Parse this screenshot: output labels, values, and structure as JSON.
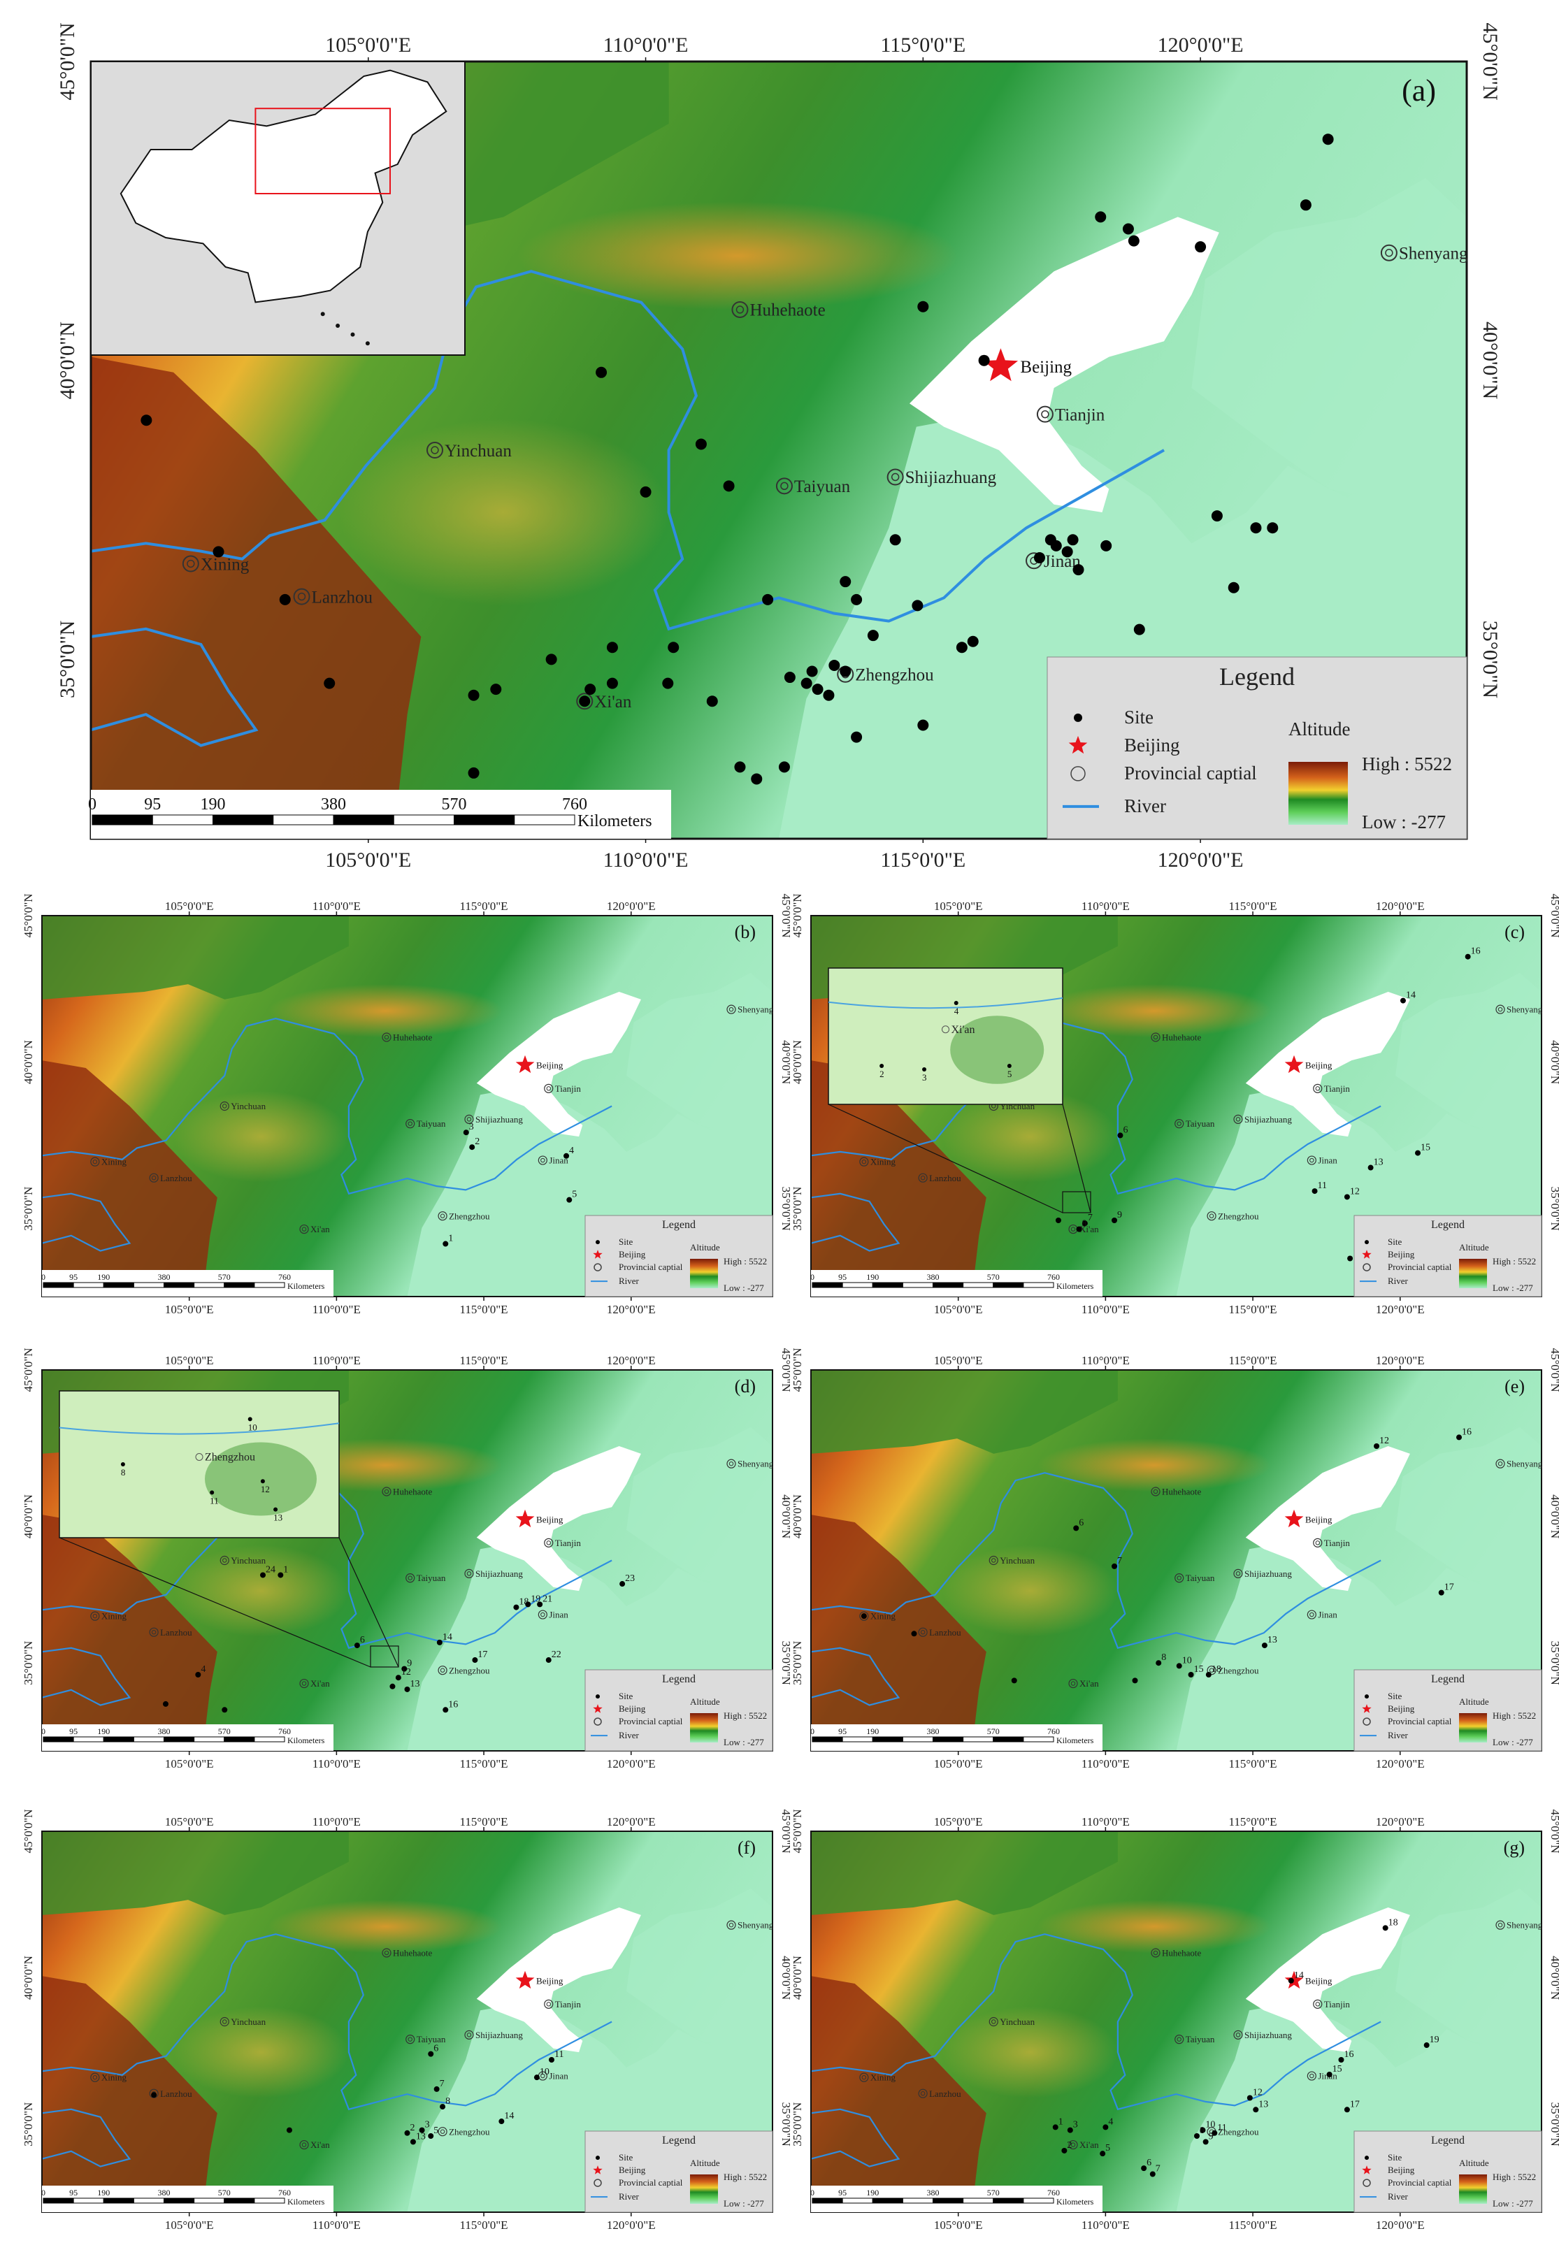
{
  "panels": [
    {
      "id": "a",
      "label": "(a)",
      "lon_ticks": [
        "105°0'0\"E",
        "110°0'0\"E",
        "115°0'0\"E",
        "120°0'0\"E"
      ],
      "lat_ticks": [
        "45°0'0\"N",
        "40°0'0\"N",
        "35°0'0\"N"
      ],
      "scale_numbers": [
        "0",
        "95",
        "190",
        "380",
        "570",
        "760"
      ],
      "scale_unit": "Kilometers"
    },
    {
      "id": "b",
      "label": "(b)",
      "lon_ticks": [
        "105°0'0\"E",
        "110°0'0\"E",
        "115°0'0\"E",
        "120°0'0\"E"
      ],
      "lat_ticks": [
        "45°0'0\"N",
        "40°0'0\"N",
        "35°0'0\"N"
      ],
      "scale_numbers": [
        "0",
        "95",
        "190",
        "380",
        "570",
        "760"
      ],
      "scale_unit": "Kilometers"
    },
    {
      "id": "c",
      "label": "(c)",
      "lon_ticks": [
        "105°0'0\"E",
        "110°0'0\"E",
        "115°0'0\"E",
        "120°0'0\"E"
      ],
      "lat_ticks": [
        "45°0'0\"N",
        "40°0'0\"N",
        "35°0'0\"N"
      ],
      "scale_numbers": [
        "0",
        "95",
        "190",
        "380",
        "570",
        "760"
      ],
      "scale_unit": "Kilometers"
    },
    {
      "id": "d",
      "label": "(d)",
      "lon_ticks": [
        "105°0'0\"E",
        "110°0'0\"E",
        "115°0'0\"E",
        "120°0'0\"E"
      ],
      "lat_ticks": [
        "45°0'0\"N",
        "40°0'0\"N",
        "35°0'0\"N"
      ],
      "scale_numbers": [
        "0",
        "95",
        "190",
        "380",
        "570",
        "760"
      ],
      "scale_unit": "Kilometers"
    },
    {
      "id": "e",
      "label": "(e)",
      "lon_ticks": [
        "105°0'0\"E",
        "110°0'0\"E",
        "115°0'0\"E",
        "120°0'0\"E"
      ],
      "lat_ticks": [
        "45°0'0\"N",
        "40°0'0\"N",
        "35°0'0\"N"
      ],
      "scale_numbers": [
        "0",
        "95",
        "190",
        "380",
        "570",
        "760"
      ],
      "scale_unit": "Kilometers"
    },
    {
      "id": "f",
      "label": "(f)",
      "lon_ticks": [
        "105°0'0\"E",
        "110°0'0\"E",
        "115°0'0\"E",
        "120°0'0\"E"
      ],
      "lat_ticks": [
        "45°0'0\"N",
        "40°0'0\"N",
        "35°0'0\"N"
      ],
      "scale_numbers": [
        "0",
        "95",
        "190",
        "380",
        "570",
        "760"
      ],
      "scale_unit": "Kilometers"
    },
    {
      "id": "g",
      "label": "(g)",
      "lon_ticks": [
        "105°0'0\"E",
        "110°0'0\"E",
        "115°0'0\"E",
        "120°0'0\"E"
      ],
      "lat_ticks": [
        "45°0'0\"N",
        "40°0'0\"N",
        "35°0'0\"N"
      ],
      "scale_numbers": [
        "0",
        "95",
        "190",
        "380",
        "570",
        "760"
      ],
      "scale_unit": "Kilometers"
    }
  ],
  "cities": [
    {
      "name": "Huhehaote",
      "lon": 111.7,
      "lat": 40.85
    },
    {
      "name": "Beijing",
      "lon": 116.4,
      "lat": 39.9,
      "capital": true
    },
    {
      "name": "Tianjin",
      "lon": 117.2,
      "lat": 39.1
    },
    {
      "name": "Shenyang",
      "lon": 123.4,
      "lat": 41.8
    },
    {
      "name": "Yinchuan",
      "lon": 106.2,
      "lat": 38.5
    },
    {
      "name": "Taiyuan",
      "lon": 112.5,
      "lat": 37.9
    },
    {
      "name": "Shijiazhuang",
      "lon": 114.5,
      "lat": 38.05
    },
    {
      "name": "Jinan",
      "lon": 117.0,
      "lat": 36.65
    },
    {
      "name": "Xining",
      "lon": 101.8,
      "lat": 36.6
    },
    {
      "name": "Lanzhou",
      "lon": 103.8,
      "lat": 36.05
    },
    {
      "name": "Zhengzhou",
      "lon": 113.6,
      "lat": 34.75
    },
    {
      "name": "Xi'an",
      "lon": 108.9,
      "lat": 34.3
    }
  ],
  "legend": {
    "title": "Legend",
    "site": "Site",
    "beijing": "Beijing",
    "capital": "Provincial captial",
    "river": "River",
    "altitude": "Altitude",
    "high": "High : 5522",
    "low": "Low : -277"
  },
  "sites_a": [
    [
      101.0,
      39.0
    ],
    [
      102.3,
      36.8
    ],
    [
      103.5,
      36.0
    ],
    [
      104.3,
      34.6
    ],
    [
      106.9,
      34.4
    ],
    [
      107.3,
      34.5
    ],
    [
      106.9,
      33.1
    ],
    [
      108.3,
      35.0
    ],
    [
      108.9,
      34.3
    ],
    [
      109.0,
      34.5
    ],
    [
      109.4,
      35.2
    ],
    [
      109.4,
      34.6
    ],
    [
      110.5,
      35.2
    ],
    [
      110.4,
      34.6
    ],
    [
      111.2,
      34.3
    ],
    [
      112.2,
      36.0
    ],
    [
      111.5,
      37.9
    ],
    [
      110.0,
      37.8
    ],
    [
      111.0,
      38.6
    ],
    [
      109.2,
      39.8
    ],
    [
      112.6,
      34.7
    ],
    [
      112.9,
      34.6
    ],
    [
      113.1,
      34.5
    ],
    [
      113.3,
      34.4
    ],
    [
      113.6,
      34.8
    ],
    [
      113.4,
      34.9
    ],
    [
      113.0,
      34.8
    ],
    [
      113.8,
      33.7
    ],
    [
      112.5,
      33.2
    ],
    [
      112.0,
      33.0
    ],
    [
      111.7,
      33.2
    ],
    [
      114.1,
      35.4
    ],
    [
      113.6,
      36.3
    ],
    [
      113.8,
      36.0
    ],
    [
      114.5,
      37.0
    ],
    [
      114.9,
      35.9
    ],
    [
      115.0,
      33.9
    ],
    [
      115.7,
      35.2
    ],
    [
      115.9,
      35.3
    ],
    [
      117.6,
      36.8
    ],
    [
      117.7,
      37.0
    ],
    [
      117.4,
      36.9
    ],
    [
      117.1,
      36.7
    ],
    [
      117.8,
      36.5
    ],
    [
      118.3,
      36.9
    ],
    [
      118.9,
      35.5
    ],
    [
      117.3,
      37.0
    ],
    [
      120.3,
      37.4
    ],
    [
      121.0,
      37.2
    ],
    [
      121.3,
      37.2
    ],
    [
      120.6,
      36.2
    ],
    [
      118.2,
      42.4
    ],
    [
      118.7,
      42.2
    ],
    [
      118.8,
      42.0
    ],
    [
      120.0,
      41.9
    ],
    [
      121.9,
      42.6
    ],
    [
      122.3,
      43.7
    ],
    [
      115.0,
      40.9
    ],
    [
      116.1,
      40.0
    ]
  ],
  "sites_b": [
    {
      "n": "1",
      "lon": 113.7,
      "lat": 33.8
    },
    {
      "n": "2",
      "lon": 114.6,
      "lat": 37.1
    },
    {
      "n": "3",
      "lon": 114.4,
      "lat": 37.6
    },
    {
      "n": "4",
      "lon": 117.8,
      "lat": 36.8
    },
    {
      "n": "5",
      "lon": 117.9,
      "lat": 35.3
    }
  ],
  "sites_c": [
    {
      "n": "6",
      "lon": 110.5,
      "lat": 37.5
    },
    {
      "n": "10",
      "lon": 118.3,
      "lat": 33.3
    },
    {
      "n": "11",
      "lon": 117.1,
      "lat": 35.6
    },
    {
      "n": "12",
      "lon": 118.2,
      "lat": 35.4
    },
    {
      "n": "13",
      "lon": 119.0,
      "lat": 36.4
    },
    {
      "n": "14",
      "lon": 120.1,
      "lat": 42.1
    },
    {
      "n": "15",
      "lon": 120.6,
      "lat": 36.9
    },
    {
      "n": "16",
      "lon": 122.3,
      "lat": 43.6
    },
    {
      "n": "7",
      "lon": 109.3,
      "lat": 34.5
    },
    {
      "n": "8",
      "lon": 109.1,
      "lat": 34.3
    },
    {
      "n": "9",
      "lon": 110.3,
      "lat": 34.6
    },
    {
      "n": "",
      "lon": 108.4,
      "lat": 34.6
    }
  ],
  "sites_d": [
    {
      "n": "24",
      "lon": 107.5,
      "lat": 38.0
    },
    {
      "n": "1",
      "lon": 108.1,
      "lat": 38.0
    },
    {
      "n": "4",
      "lon": 105.3,
      "lat": 34.6
    },
    {
      "n": "6",
      "lon": 110.7,
      "lat": 35.6
    },
    {
      "n": "14",
      "lon": 113.5,
      "lat": 35.7
    },
    {
      "n": "16",
      "lon": 113.7,
      "lat": 33.4
    },
    {
      "n": "17",
      "lon": 114.7,
      "lat": 35.1
    },
    {
      "n": "22",
      "lon": 117.2,
      "lat": 35.1
    },
    {
      "n": "23",
      "lon": 119.7,
      "lat": 37.7
    },
    {
      "n": "18",
      "lon": 116.1,
      "lat": 36.9
    },
    {
      "n": "19",
      "lon": 116.5,
      "lat": 37.0
    },
    {
      "n": "21",
      "lon": 116.9,
      "lat": 37.0
    },
    {
      "n": "9",
      "lon": 112.3,
      "lat": 34.8
    },
    {
      "n": "12",
      "lon": 112.1,
      "lat": 34.5
    },
    {
      "n": "13",
      "lon": 112.4,
      "lat": 34.1
    },
    {
      "n": "",
      "lon": 111.9,
      "lat": 34.2
    },
    {
      "n": "",
      "lon": 104.2,
      "lat": 33.6
    },
    {
      "n": "",
      "lon": 106.2,
      "lat": 33.4
    }
  ],
  "sites_e": [
    {
      "n": "12",
      "lon": 119.2,
      "lat": 42.4
    },
    {
      "n": "16",
      "lon": 122.0,
      "lat": 42.7
    },
    {
      "n": "6",
      "lon": 109.0,
      "lat": 39.6
    },
    {
      "n": "7",
      "lon": 110.3,
      "lat": 38.3
    },
    {
      "n": "17",
      "lon": 121.4,
      "lat": 37.4
    },
    {
      "n": "13",
      "lon": 115.4,
      "lat": 35.6
    },
    {
      "n": "8",
      "lon": 111.8,
      "lat": 35.0
    },
    {
      "n": "10",
      "lon": 112.5,
      "lat": 34.9
    },
    {
      "n": "18",
      "lon": 113.5,
      "lat": 34.6
    },
    {
      "n": "15",
      "lon": 112.9,
      "lat": 34.6
    },
    {
      "n": "",
      "lon": 101.8,
      "lat": 36.6
    },
    {
      "n": "",
      "lon": 103.5,
      "lat": 36.0
    },
    {
      "n": "",
      "lon": 106.9,
      "lat": 34.4
    },
    {
      "n": "",
      "lon": 111.0,
      "lat": 34.4
    }
  ],
  "sites_f": [
    {
      "n": "6",
      "lon": 113.2,
      "lat": 37.4
    },
    {
      "n": "7",
      "lon": 113.4,
      "lat": 36.2
    },
    {
      "n": "8",
      "lon": 113.6,
      "lat": 35.6
    },
    {
      "n": "10",
      "lon": 116.8,
      "lat": 36.6
    },
    {
      "n": "11",
      "lon": 117.3,
      "lat": 37.2
    },
    {
      "n": "14",
      "lon": 115.6,
      "lat": 35.1
    },
    {
      "n": "2",
      "lon": 112.4,
      "lat": 34.7
    },
    {
      "n": "3",
      "lon": 112.9,
      "lat": 34.8
    },
    {
      "n": "5",
      "lon": 113.2,
      "lat": 34.6
    },
    {
      "n": "13",
      "lon": 112.6,
      "lat": 34.4
    },
    {
      "n": "",
      "lon": 108.4,
      "lat": 34.8
    },
    {
      "n": "",
      "lon": 103.8,
      "lat": 36.0
    }
  ],
  "sites_g": [
    {
      "n": "18",
      "lon": 119.5,
      "lat": 41.7
    },
    {
      "n": "14",
      "lon": 116.3,
      "lat": 39.9
    },
    {
      "n": "19",
      "lon": 120.9,
      "lat": 37.7
    },
    {
      "n": "16",
      "lon": 118.0,
      "lat": 37.2
    },
    {
      "n": "15",
      "lon": 117.6,
      "lat": 36.7
    },
    {
      "n": "12",
      "lon": 114.9,
      "lat": 35.9
    },
    {
      "n": "13",
      "lon": 115.1,
      "lat": 35.5
    },
    {
      "n": "17",
      "lon": 118.2,
      "lat": 35.5
    },
    {
      "n": "10",
      "lon": 113.3,
      "lat": 34.8
    },
    {
      "n": "11",
      "lon": 113.7,
      "lat": 34.7
    },
    {
      "n": "9",
      "lon": 113.4,
      "lat": 34.4
    },
    {
      "n": "8",
      "lon": 113.1,
      "lat": 34.6
    },
    {
      "n": "6",
      "lon": 111.3,
      "lat": 33.5
    },
    {
      "n": "7",
      "lon": 111.6,
      "lat": 33.3
    },
    {
      "n": "4",
      "lon": 110.0,
      "lat": 34.9
    },
    {
      "n": "3",
      "lon": 108.8,
      "lat": 34.8
    },
    {
      "n": "1",
      "lon": 108.3,
      "lat": 34.9
    },
    {
      "n": "2",
      "lon": 108.6,
      "lat": 34.1
    },
    {
      "n": "5",
      "lon": 109.9,
      "lat": 34.0
    }
  ],
  "insets": {
    "c": {
      "sites": [
        {
          "n": "4",
          "lon": 109.0,
          "lat": 35.3
        },
        {
          "n": "2",
          "lon": 108.3,
          "lat": 34.4
        },
        {
          "n": "3",
          "lon": 108.7,
          "lat": 34.35
        },
        {
          "n": "5",
          "lon": 109.5,
          "lat": 34.4
        }
      ],
      "city": "Xi'an"
    },
    "d": {
      "sites": [
        {
          "n": "10",
          "lon": 112.6,
          "lat": 35.8
        },
        {
          "n": "8",
          "lon": 111.6,
          "lat": 35.0
        },
        {
          "n": "12",
          "lon": 112.7,
          "lat": 34.7
        },
        {
          "n": "11",
          "lon": 112.3,
          "lat": 34.5
        },
        {
          "n": "13",
          "lon": 112.8,
          "lat": 34.2
        }
      ],
      "city": "Zhengzhou"
    }
  }
}
